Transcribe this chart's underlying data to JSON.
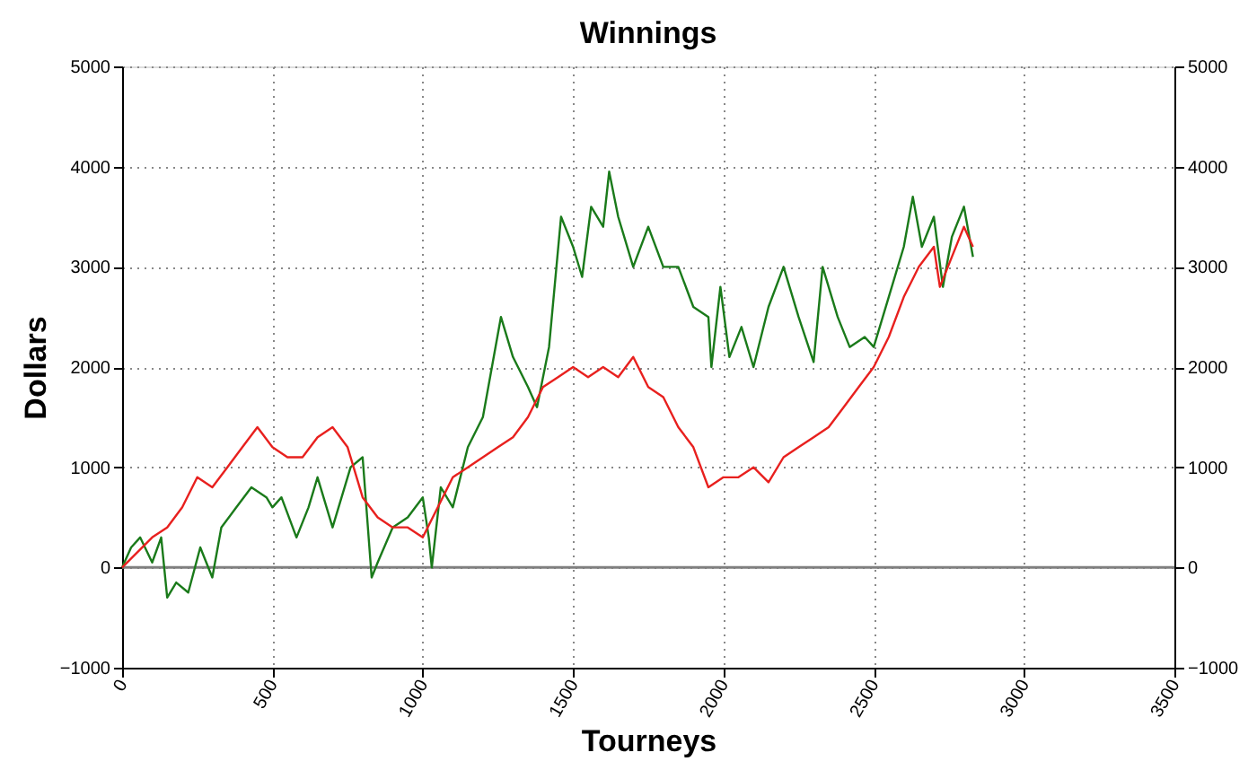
{
  "chart_data": {
    "type": "line",
    "title": "Winnings",
    "xlabel": "Tourneys",
    "ylabel": "Dollars",
    "xlim": [
      0,
      3500
    ],
    "xticks": [
      0,
      500,
      1000,
      1500,
      2000,
      2500,
      3000,
      3500
    ],
    "ylim": [
      -1000,
      5000
    ],
    "yticks": [
      -1000,
      0,
      1000,
      2000,
      3000,
      4000,
      5000
    ],
    "y2lim": [
      -1000,
      5000
    ],
    "y2ticks": [
      -1000,
      0,
      1000,
      2000,
      3000,
      4000,
      5000
    ],
    "grid": true,
    "marker": "none",
    "line_style": "solid",
    "ref_lines": [
      {
        "axis": "y",
        "value": 0,
        "color": "#808080",
        "line_style": "solid"
      }
    ],
    "series": [
      {
        "color": "#1a7a1a",
        "x": [
          0,
          30,
          60,
          100,
          130,
          150,
          180,
          220,
          260,
          300,
          330,
          380,
          430,
          480,
          500,
          530,
          580,
          620,
          650,
          700,
          760,
          800,
          830,
          850,
          900,
          950,
          1000,
          1020,
          1030,
          1060,
          1100,
          1150,
          1200,
          1260,
          1300,
          1350,
          1380,
          1420,
          1460,
          1500,
          1530,
          1560,
          1600,
          1620,
          1650,
          1700,
          1750,
          1800,
          1850,
          1900,
          1950,
          1960,
          1990,
          2020,
          2060,
          2100,
          2150,
          2200,
          2250,
          2300,
          2330,
          2380,
          2420,
          2470,
          2500,
          2550,
          2600,
          2630,
          2660,
          2700,
          2730,
          2760,
          2800,
          2830
        ],
        "values": [
          0,
          200,
          300,
          50,
          300,
          -300,
          -150,
          -250,
          200,
          -100,
          400,
          600,
          800,
          700,
          600,
          700,
          300,
          600,
          900,
          400,
          1000,
          1100,
          -100,
          50,
          400,
          500,
          700,
          300,
          0,
          800,
          600,
          1200,
          1500,
          2500,
          2100,
          1800,
          1600,
          2200,
          3500,
          3200,
          2900,
          3600,
          3400,
          3950,
          3500,
          3000,
          3400,
          3000,
          3000,
          2600,
          2500,
          2000,
          2800,
          2100,
          2400,
          2000,
          2600,
          3000,
          2500,
          2050,
          3000,
          2500,
          2200,
          2300,
          2200,
          2700,
          3200,
          3700,
          3200,
          3500,
          2800,
          3300,
          3600,
          3100
        ]
      },
      {
        "color": "#e8201e",
        "x": [
          0,
          50,
          100,
          150,
          200,
          250,
          300,
          350,
          400,
          450,
          500,
          550,
          600,
          650,
          700,
          750,
          800,
          850,
          900,
          950,
          1000,
          1050,
          1100,
          1150,
          1200,
          1250,
          1300,
          1350,
          1400,
          1450,
          1500,
          1550,
          1600,
          1650,
          1700,
          1750,
          1800,
          1850,
          1900,
          1950,
          2000,
          2050,
          2100,
          2150,
          2200,
          2250,
          2300,
          2350,
          2400,
          2450,
          2500,
          2550,
          2600,
          2650,
          2700,
          2720,
          2760,
          2800,
          2830
        ],
        "values": [
          0,
          150,
          300,
          400,
          600,
          900,
          800,
          1000,
          1200,
          1400,
          1200,
          1100,
          1100,
          1300,
          1400,
          1200,
          700,
          500,
          400,
          400,
          300,
          600,
          900,
          1000,
          1100,
          1200,
          1300,
          1500,
          1800,
          1900,
          2000,
          1900,
          2000,
          1900,
          2100,
          1800,
          1700,
          1400,
          1200,
          800,
          900,
          900,
          1000,
          850,
          1100,
          1200,
          1300,
          1400,
          1600,
          1800,
          2000,
          2300,
          2700,
          3000,
          3200,
          2800,
          3100,
          3400,
          3200
        ]
      }
    ]
  }
}
